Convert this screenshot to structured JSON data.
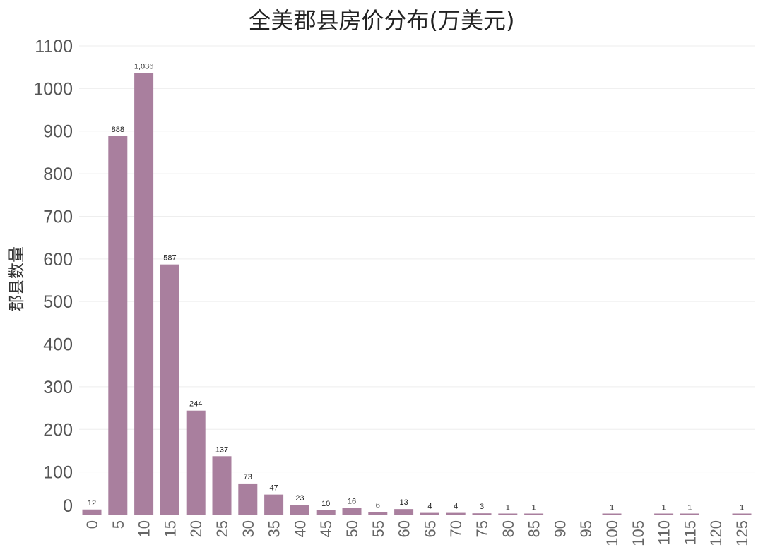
{
  "chart_data": {
    "type": "bar",
    "title": "全美郡县房价分布(万美元)",
    "xlabel": "",
    "ylabel": "郡县数量",
    "ylim": [
      0,
      1100
    ],
    "y_ticks": [
      0,
      100,
      200,
      300,
      400,
      500,
      600,
      700,
      800,
      900,
      1000,
      1100
    ],
    "categories": [
      "0",
      "5",
      "10",
      "15",
      "20",
      "25",
      "30",
      "35",
      "40",
      "45",
      "50",
      "55",
      "60",
      "65",
      "70",
      "75",
      "80",
      "85",
      "90",
      "95",
      "100",
      "105",
      "110",
      "115",
      "120",
      "125"
    ],
    "values": [
      12,
      888,
      1036,
      587,
      244,
      137,
      73,
      47,
      23,
      10,
      16,
      6,
      13,
      4,
      4,
      3,
      1,
      1,
      0,
      0,
      1,
      0,
      1,
      1,
      0,
      1
    ],
    "data_labels": [
      "12",
      "888",
      "1,036",
      "587",
      "244",
      "137",
      "73",
      "47",
      "23",
      "10",
      "16",
      "6",
      "13",
      "4",
      "4",
      "3",
      "1",
      "1",
      "",
      "",
      "1",
      "",
      "1",
      "1",
      "",
      "1"
    ],
    "bar_color": "#a97f9e",
    "grid": true,
    "legend": "none"
  }
}
